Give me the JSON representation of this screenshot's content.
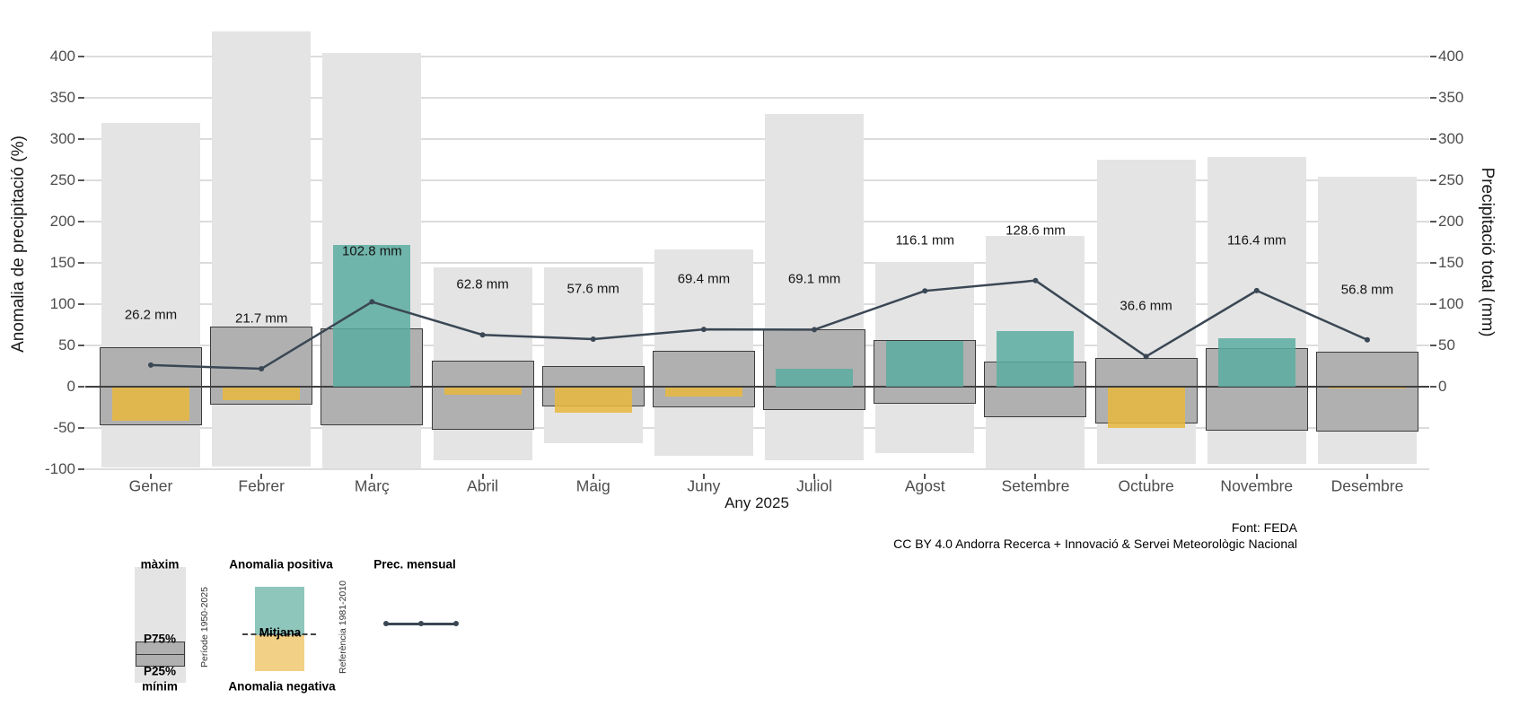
{
  "figure": {
    "y_axis_left_title": "Anomalia de precipitació (%)",
    "y_axis_right_title": "Precipitació total (mm)",
    "x_axis_title": "Any 2025",
    "source_line1": "Font: FEDA",
    "source_line2": "CC BY 4.0 Andorra Recerca + Innovació & Servei Meteorològic Nacional"
  },
  "chart_data": {
    "type": "bar",
    "subtype": "range-bars + interquartile boxes + anomaly bars + precipitation line",
    "title": "",
    "xlabel": "Any 2025",
    "ylabel_left": "Anomalia de precipitació (%)",
    "ylabel_right": "Precipitació total (mm)",
    "ylim_left": [
      -100,
      430
    ],
    "yticks_left": [
      400,
      350,
      300,
      250,
      200,
      150,
      100,
      50,
      0,
      -50,
      -100
    ],
    "yticks_right": [
      400,
      350,
      300,
      250,
      200,
      150,
      100,
      50,
      0
    ],
    "grid": "horizontal-major",
    "categories": [
      "Gener",
      "Febrer",
      "Març",
      "Abril",
      "Maig",
      "Juny",
      "Juliol",
      "Agost",
      "Setembre",
      "Octubre",
      "Novembre",
      "Desembre"
    ],
    "records": [
      {
        "month": "Gener",
        "max_pct": 320,
        "min_pct": -98,
        "p75_pct": 48,
        "p25_pct": -47,
        "anomaly_pct": -41,
        "precip_mm": 26.2,
        "label": "26.2 mm"
      },
      {
        "month": "Febrer",
        "max_pct": 430,
        "min_pct": -97,
        "p75_pct": 73,
        "p25_pct": -22,
        "anomaly_pct": -16,
        "precip_mm": 21.7,
        "label": "21.7 mm"
      },
      {
        "month": "Març",
        "max_pct": 404,
        "min_pct": -99,
        "p75_pct": 71,
        "p25_pct": -47,
        "anomaly_pct": 172,
        "precip_mm": 102.8,
        "label": "102.8 mm"
      },
      {
        "month": "Abril",
        "max_pct": 145,
        "min_pct": -89,
        "p75_pct": 32,
        "p25_pct": -52,
        "anomaly_pct": -10,
        "precip_mm": 62.8,
        "label": "62.8 mm"
      },
      {
        "month": "Maig",
        "max_pct": 145,
        "min_pct": -69,
        "p75_pct": 25,
        "p25_pct": -24,
        "anomaly_pct": -32,
        "precip_mm": 57.6,
        "label": "57.6 mm"
      },
      {
        "month": "Juny",
        "max_pct": 166,
        "min_pct": -84,
        "p75_pct": 43,
        "p25_pct": -25,
        "anomaly_pct": -12,
        "precip_mm": 69.4,
        "label": "69.4 mm"
      },
      {
        "month": "Juliol",
        "max_pct": 330,
        "min_pct": -89,
        "p75_pct": 70,
        "p25_pct": -28,
        "anomaly_pct": 22,
        "precip_mm": 69.1,
        "label": "69.1 mm"
      },
      {
        "month": "Agost",
        "max_pct": 151,
        "min_pct": -80,
        "p75_pct": 56,
        "p25_pct": -21,
        "anomaly_pct": 55,
        "precip_mm": 116.1,
        "label": "116.1 mm"
      },
      {
        "month": "Setembre",
        "max_pct": 183,
        "min_pct": -99,
        "p75_pct": 30,
        "p25_pct": -37,
        "anomaly_pct": 67,
        "precip_mm": 128.6,
        "label": "128.6 mm"
      },
      {
        "month": "Octubre",
        "max_pct": 275,
        "min_pct": -93,
        "p75_pct": 35,
        "p25_pct": -45,
        "anomaly_pct": -50,
        "precip_mm": 36.6,
        "label": "36.6 mm"
      },
      {
        "month": "Novembre",
        "max_pct": 278,
        "min_pct": -93,
        "p75_pct": 47,
        "p25_pct": -53,
        "anomaly_pct": 59,
        "precip_mm": 116.4,
        "label": "116.4 mm"
      },
      {
        "month": "Desembre",
        "max_pct": 254,
        "min_pct": -94,
        "p75_pct": 42,
        "p25_pct": -54,
        "anomaly_pct": -2,
        "precip_mm": 56.8,
        "label": "56.8 mm"
      }
    ],
    "legend_position": "bottom-left"
  },
  "colors": {
    "range_bar": "#e4e4e4",
    "box_fill": "#b0b0b0",
    "box_border": "#3c3c3c",
    "anomaly_positive": "#5cada1",
    "anomaly_negative": "#e9b93e",
    "precip_line": "#3a4754",
    "gridline": "#dcdcdc",
    "zero_line": "#3f3f3f",
    "tick_text": "#4d4d4d",
    "legend_teal": "#8ec6bc",
    "legend_yellow": "#f2d186"
  },
  "legend": {
    "range": {
      "max_label": "màxim",
      "p75_label": "P75%",
      "p25_label": "P25%",
      "min_label": "mínim",
      "period_label": "Període 1950-2025"
    },
    "anomaly": {
      "positive_label": "Anomalia positiva",
      "mean_label": "Mitjana",
      "negative_label": "Anomalia negativa",
      "reference_label": "Referència 1981-2010"
    },
    "line": {
      "label": "Prec. mensual"
    }
  }
}
